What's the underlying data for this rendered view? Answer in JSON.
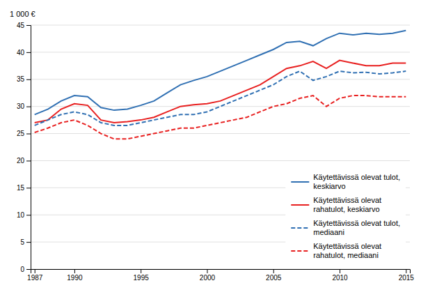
{
  "chart_data": {
    "type": "line",
    "ylabel": "1 000 €",
    "x": [
      1987,
      1988,
      1989,
      1990,
      1991,
      1992,
      1993,
      1994,
      1995,
      1996,
      1997,
      1998,
      1999,
      2000,
      2001,
      2002,
      2003,
      2004,
      2005,
      2006,
      2007,
      2008,
      2009,
      2010,
      2011,
      2012,
      2013,
      2014,
      2015
    ],
    "series": [
      {
        "name": "Käytettävissä olevat tulot,\nkeskiarvo",
        "color": "#3070B3",
        "line_style": "solid",
        "values": [
          28.5,
          29.5,
          31.0,
          32.0,
          31.8,
          29.8,
          29.3,
          29.5,
          30.2,
          31.0,
          32.5,
          34.0,
          34.8,
          35.5,
          36.5,
          37.5,
          38.5,
          39.5,
          40.5,
          41.8,
          42.0,
          41.2,
          42.5,
          43.5,
          43.2,
          43.5,
          43.3,
          43.5,
          44.0
        ]
      },
      {
        "name": "Käytettävissä olevat\nrahatulot, keskiarvo",
        "color": "#E82020",
        "line_style": "solid",
        "values": [
          27.0,
          27.5,
          29.5,
          30.5,
          30.2,
          27.5,
          27.0,
          27.2,
          27.5,
          28.0,
          29.0,
          30.0,
          30.3,
          30.5,
          31.0,
          32.0,
          33.0,
          34.0,
          35.5,
          37.0,
          37.5,
          38.3,
          37.0,
          38.5,
          38.0,
          37.5,
          37.5,
          38.0,
          38.0
        ]
      },
      {
        "name": "Käytettävissä olevat tulot,\nmediaani",
        "color": "#3070B3",
        "line_style": "dashed",
        "values": [
          26.5,
          27.5,
          28.5,
          29.0,
          28.5,
          27.0,
          26.5,
          26.5,
          27.0,
          27.5,
          28.0,
          28.5,
          28.5,
          29.0,
          30.0,
          31.0,
          32.0,
          33.0,
          34.0,
          35.5,
          36.5,
          34.8,
          35.5,
          36.5,
          36.2,
          36.3,
          36.0,
          36.2,
          36.5
        ]
      },
      {
        "name": "Käytettävissä olevat\nrahatulot, mediaani",
        "color": "#E82020",
        "line_style": "dashed",
        "values": [
          25.2,
          26.0,
          27.0,
          27.5,
          26.5,
          25.0,
          24.0,
          24.0,
          24.5,
          25.0,
          25.5,
          26.0,
          26.0,
          26.5,
          27.0,
          27.5,
          28.0,
          29.0,
          30.0,
          30.5,
          31.5,
          32.0,
          30.0,
          31.5,
          32.0,
          32.0,
          31.8,
          31.8,
          31.8
        ]
      }
    ],
    "xlim": [
      1986.7,
      2015.3
    ],
    "xticks": [
      1987,
      1990,
      1995,
      2000,
      2005,
      2010,
      2015
    ],
    "ylim": [
      0,
      45
    ],
    "yticks": [
      0,
      5,
      10,
      15,
      20,
      25,
      30,
      35,
      40,
      45
    ],
    "grid": true,
    "legend": "lower right"
  }
}
